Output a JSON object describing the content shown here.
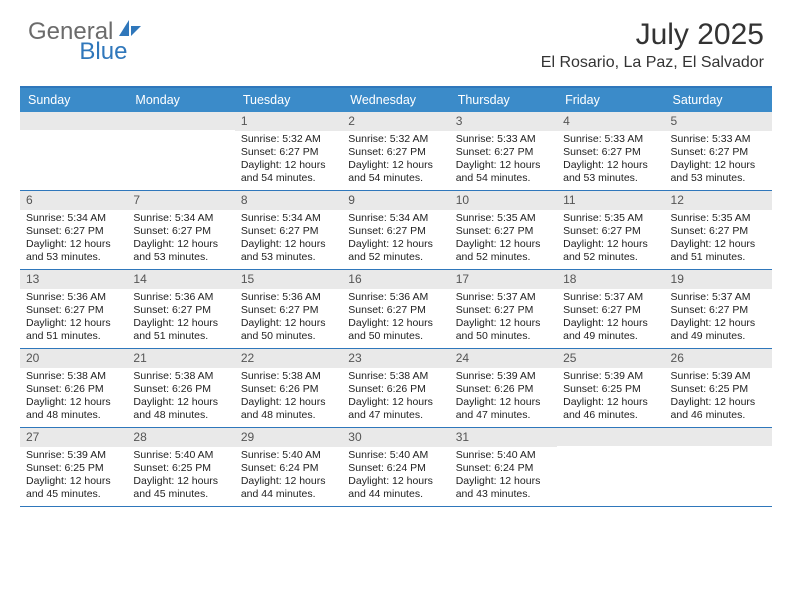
{
  "brand": {
    "general": "General",
    "blue": "Blue"
  },
  "title": "July 2025",
  "location": "El Rosario, La Paz, El Salvador",
  "colors": {
    "header_bg": "#3b8bc9",
    "border": "#2f77bb",
    "daynum_bg": "#e9e9e9",
    "text": "#222222",
    "logo_gray": "#6b6b6b",
    "logo_blue": "#2f77bb"
  },
  "day_headers": [
    "Sunday",
    "Monday",
    "Tuesday",
    "Wednesday",
    "Thursday",
    "Friday",
    "Saturday"
  ],
  "weeks": [
    [
      null,
      null,
      {
        "n": "1",
        "sr": "Sunrise: 5:32 AM",
        "ss": "Sunset: 6:27 PM",
        "dl": "Daylight: 12 hours and 54 minutes."
      },
      {
        "n": "2",
        "sr": "Sunrise: 5:32 AM",
        "ss": "Sunset: 6:27 PM",
        "dl": "Daylight: 12 hours and 54 minutes."
      },
      {
        "n": "3",
        "sr": "Sunrise: 5:33 AM",
        "ss": "Sunset: 6:27 PM",
        "dl": "Daylight: 12 hours and 54 minutes."
      },
      {
        "n": "4",
        "sr": "Sunrise: 5:33 AM",
        "ss": "Sunset: 6:27 PM",
        "dl": "Daylight: 12 hours and 53 minutes."
      },
      {
        "n": "5",
        "sr": "Sunrise: 5:33 AM",
        "ss": "Sunset: 6:27 PM",
        "dl": "Daylight: 12 hours and 53 minutes."
      }
    ],
    [
      {
        "n": "6",
        "sr": "Sunrise: 5:34 AM",
        "ss": "Sunset: 6:27 PM",
        "dl": "Daylight: 12 hours and 53 minutes."
      },
      {
        "n": "7",
        "sr": "Sunrise: 5:34 AM",
        "ss": "Sunset: 6:27 PM",
        "dl": "Daylight: 12 hours and 53 minutes."
      },
      {
        "n": "8",
        "sr": "Sunrise: 5:34 AM",
        "ss": "Sunset: 6:27 PM",
        "dl": "Daylight: 12 hours and 53 minutes."
      },
      {
        "n": "9",
        "sr": "Sunrise: 5:34 AM",
        "ss": "Sunset: 6:27 PM",
        "dl": "Daylight: 12 hours and 52 minutes."
      },
      {
        "n": "10",
        "sr": "Sunrise: 5:35 AM",
        "ss": "Sunset: 6:27 PM",
        "dl": "Daylight: 12 hours and 52 minutes."
      },
      {
        "n": "11",
        "sr": "Sunrise: 5:35 AM",
        "ss": "Sunset: 6:27 PM",
        "dl": "Daylight: 12 hours and 52 minutes."
      },
      {
        "n": "12",
        "sr": "Sunrise: 5:35 AM",
        "ss": "Sunset: 6:27 PM",
        "dl": "Daylight: 12 hours and 51 minutes."
      }
    ],
    [
      {
        "n": "13",
        "sr": "Sunrise: 5:36 AM",
        "ss": "Sunset: 6:27 PM",
        "dl": "Daylight: 12 hours and 51 minutes."
      },
      {
        "n": "14",
        "sr": "Sunrise: 5:36 AM",
        "ss": "Sunset: 6:27 PM",
        "dl": "Daylight: 12 hours and 51 minutes."
      },
      {
        "n": "15",
        "sr": "Sunrise: 5:36 AM",
        "ss": "Sunset: 6:27 PM",
        "dl": "Daylight: 12 hours and 50 minutes."
      },
      {
        "n": "16",
        "sr": "Sunrise: 5:36 AM",
        "ss": "Sunset: 6:27 PM",
        "dl": "Daylight: 12 hours and 50 minutes."
      },
      {
        "n": "17",
        "sr": "Sunrise: 5:37 AM",
        "ss": "Sunset: 6:27 PM",
        "dl": "Daylight: 12 hours and 50 minutes."
      },
      {
        "n": "18",
        "sr": "Sunrise: 5:37 AM",
        "ss": "Sunset: 6:27 PM",
        "dl": "Daylight: 12 hours and 49 minutes."
      },
      {
        "n": "19",
        "sr": "Sunrise: 5:37 AM",
        "ss": "Sunset: 6:27 PM",
        "dl": "Daylight: 12 hours and 49 minutes."
      }
    ],
    [
      {
        "n": "20",
        "sr": "Sunrise: 5:38 AM",
        "ss": "Sunset: 6:26 PM",
        "dl": "Daylight: 12 hours and 48 minutes."
      },
      {
        "n": "21",
        "sr": "Sunrise: 5:38 AM",
        "ss": "Sunset: 6:26 PM",
        "dl": "Daylight: 12 hours and 48 minutes."
      },
      {
        "n": "22",
        "sr": "Sunrise: 5:38 AM",
        "ss": "Sunset: 6:26 PM",
        "dl": "Daylight: 12 hours and 48 minutes."
      },
      {
        "n": "23",
        "sr": "Sunrise: 5:38 AM",
        "ss": "Sunset: 6:26 PM",
        "dl": "Daylight: 12 hours and 47 minutes."
      },
      {
        "n": "24",
        "sr": "Sunrise: 5:39 AM",
        "ss": "Sunset: 6:26 PM",
        "dl": "Daylight: 12 hours and 47 minutes."
      },
      {
        "n": "25",
        "sr": "Sunrise: 5:39 AM",
        "ss": "Sunset: 6:25 PM",
        "dl": "Daylight: 12 hours and 46 minutes."
      },
      {
        "n": "26",
        "sr": "Sunrise: 5:39 AM",
        "ss": "Sunset: 6:25 PM",
        "dl": "Daylight: 12 hours and 46 minutes."
      }
    ],
    [
      {
        "n": "27",
        "sr": "Sunrise: 5:39 AM",
        "ss": "Sunset: 6:25 PM",
        "dl": "Daylight: 12 hours and 45 minutes."
      },
      {
        "n": "28",
        "sr": "Sunrise: 5:40 AM",
        "ss": "Sunset: 6:25 PM",
        "dl": "Daylight: 12 hours and 45 minutes."
      },
      {
        "n": "29",
        "sr": "Sunrise: 5:40 AM",
        "ss": "Sunset: 6:24 PM",
        "dl": "Daylight: 12 hours and 44 minutes."
      },
      {
        "n": "30",
        "sr": "Sunrise: 5:40 AM",
        "ss": "Sunset: 6:24 PM",
        "dl": "Daylight: 12 hours and 44 minutes."
      },
      {
        "n": "31",
        "sr": "Sunrise: 5:40 AM",
        "ss": "Sunset: 6:24 PM",
        "dl": "Daylight: 12 hours and 43 minutes."
      },
      null,
      null
    ]
  ]
}
